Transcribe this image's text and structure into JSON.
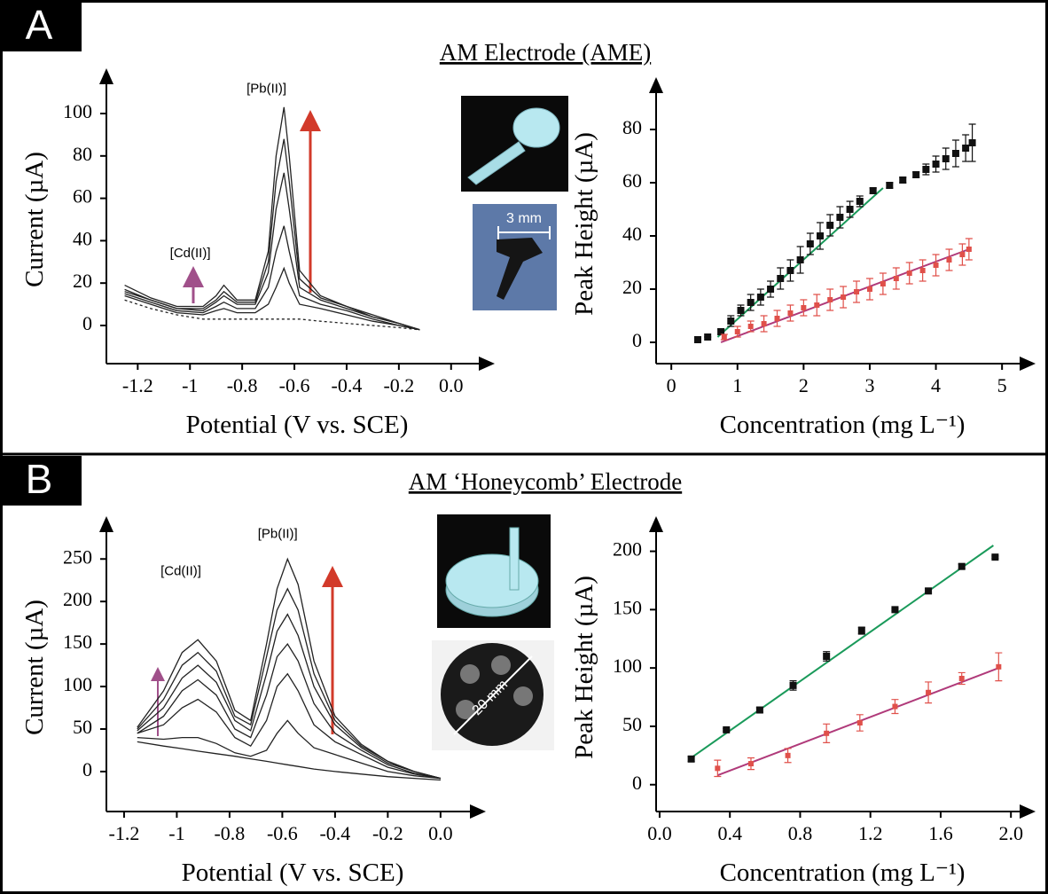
{
  "panels": [
    {
      "label": "A",
      "title": "AM Electrode (AME)",
      "photo_label": "3 mm"
    },
    {
      "label": "B",
      "title": "AM ‘Honeycomb’ Electrode",
      "photo_label": "20 mm"
    }
  ],
  "chart_data": [
    {
      "type": "line",
      "xlabel": "Potential (V vs. SCE)",
      "ylabel": "Current (µA)",
      "annotations": [
        "[Cd(II)]",
        "[Pb(II)]"
      ],
      "xlim": [
        -1.32,
        0.14
      ],
      "ylim": [
        -18,
        118
      ],
      "xticks": [
        -1.2,
        -1.0,
        -0.8,
        -0.6,
        -0.4,
        -0.2,
        {
          "value": 0,
          "label": "0.0"
        }
      ],
      "yticks": [
        0,
        20,
        40,
        60,
        80,
        100
      ],
      "x": [
        -1.25,
        -1.15,
        -1.05,
        -0.95,
        -0.9,
        -0.87,
        -0.82,
        -0.75,
        -0.7,
        -0.67,
        -0.64,
        -0.62,
        -0.58,
        -0.5,
        -0.4,
        -0.3,
        -0.2,
        -0.12
      ],
      "series": [
        {
          "color": "#222222",
          "dashed": true,
          "values": [
            12,
            8,
            5,
            3,
            3,
            3,
            3,
            3,
            3,
            3,
            3,
            3,
            3,
            2,
            1,
            0,
            -1,
            -2
          ]
        },
        {
          "color": "#222222",
          "values": [
            14,
            10,
            6,
            5,
            7,
            8,
            6,
            6,
            10,
            18,
            27,
            20,
            10,
            8,
            5,
            2,
            0,
            -2
          ]
        },
        {
          "color": "#222222",
          "values": [
            15,
            11,
            7,
            6,
            9,
            11,
            8,
            8,
            18,
            35,
            47,
            35,
            14,
            10,
            7,
            3,
            0,
            -2
          ]
        },
        {
          "color": "#222222",
          "values": [
            16,
            12,
            8,
            7,
            11,
            14,
            10,
            10,
            25,
            55,
            72,
            55,
            18,
            12,
            8,
            4,
            1,
            -2
          ]
        },
        {
          "color": "#222222",
          "values": [
            17,
            12,
            8,
            8,
            12,
            16,
            11,
            11,
            30,
            68,
            88,
            68,
            22,
            13,
            9,
            4,
            1,
            -2
          ]
        },
        {
          "color": "#222222",
          "values": [
            19,
            13,
            9,
            9,
            14,
            19,
            12,
            12,
            35,
            80,
            103,
            80,
            26,
            14,
            9,
            5,
            1,
            -2
          ]
        }
      ]
    },
    {
      "type": "scatter",
      "xlabel": "Concentration (mg L⁻¹)",
      "ylabel": "Peak Height (µA)",
      "xlim": [
        -0.23,
        5.4
      ],
      "ylim": [
        -8,
        97
      ],
      "xticks": [
        0,
        1,
        2,
        3,
        4,
        5
      ],
      "yticks": [
        0,
        20,
        40,
        60,
        80
      ],
      "series": [
        {
          "color": "#111111",
          "x": [
            0.4,
            0.55,
            0.75,
            0.9,
            1.05,
            1.2,
            1.35,
            1.5,
            1.65,
            1.8,
            1.95,
            2.1,
            2.25,
            2.4,
            2.55,
            2.7,
            2.85,
            3.05,
            3.3,
            3.5,
            3.7,
            3.85,
            4.0,
            4.15,
            4.3,
            4.45,
            4.55
          ],
          "values": [
            1,
            2,
            4,
            8,
            12,
            15,
            17,
            20,
            24,
            27,
            31,
            37,
            40,
            44,
            47,
            50,
            53,
            57,
            59,
            61,
            63,
            65,
            67,
            69,
            71,
            73,
            75
          ],
          "errors": [
            0,
            0,
            1,
            2,
            2,
            3,
            3,
            3,
            4,
            4,
            5,
            4,
            5,
            4,
            4,
            3,
            2,
            1,
            1,
            1,
            1,
            2,
            3,
            4,
            5,
            5,
            7
          ]
        },
        {
          "color": "#e0504a",
          "x": [
            0.8,
            1.0,
            1.2,
            1.4,
            1.6,
            1.8,
            2.0,
            2.2,
            2.4,
            2.6,
            2.8,
            3.0,
            3.2,
            3.4,
            3.6,
            3.8,
            4.0,
            4.2,
            4.4,
            4.5
          ],
          "values": [
            2,
            4,
            6,
            7,
            9,
            11,
            13,
            14,
            16,
            17,
            19,
            20,
            22,
            24,
            26,
            27,
            29,
            31,
            33,
            35
          ],
          "errors": [
            1,
            2,
            2,
            3,
            3,
            3,
            3,
            4,
            4,
            4,
            4,
            4,
            4,
            4,
            4,
            4,
            4,
            4,
            4,
            4
          ]
        }
      ],
      "fits": [
        {
          "color": "#1a9a5a",
          "x": [
            0.7,
            3.2
          ],
          "values": [
            2,
            58
          ]
        },
        {
          "color": "#b03a7a",
          "x": [
            0.75,
            4.5
          ],
          "values": [
            0,
            35
          ]
        }
      ]
    },
    {
      "type": "line",
      "xlabel": "Potential (V vs. SCE)",
      "ylabel": "Current (µA)",
      "annotations": [
        "[Cd(II)]",
        "[Pb(II)]"
      ],
      "xlim": [
        -1.267,
        0.145
      ],
      "ylim": [
        -47,
        292
      ],
      "xticks": [
        -1.2,
        -1.0,
        -0.8,
        -0.6,
        -0.4,
        -0.2,
        {
          "value": 0,
          "label": "0.0"
        }
      ],
      "yticks": [
        0,
        50,
        100,
        150,
        200,
        250
      ],
      "x": [
        -1.15,
        -1.05,
        -0.98,
        -0.92,
        -0.85,
        -0.78,
        -0.72,
        -0.66,
        -0.62,
        -0.58,
        -0.54,
        -0.48,
        -0.4,
        -0.3,
        -0.2,
        -0.1,
        0
      ],
      "series": [
        {
          "color": "#222222",
          "values": [
            35,
            30,
            27,
            24,
            21,
            18,
            15,
            12,
            10,
            8,
            6,
            3,
            0,
            -3,
            -6,
            -8,
            -10
          ]
        },
        {
          "color": "#222222",
          "values": [
            40,
            38,
            40,
            40,
            33,
            22,
            18,
            25,
            45,
            60,
            45,
            28,
            20,
            10,
            0,
            -5,
            -8
          ]
        },
        {
          "color": "#222222",
          "values": [
            45,
            55,
            75,
            85,
            70,
            40,
            30,
            60,
            100,
            115,
            95,
            55,
            35,
            20,
            5,
            -3,
            -8
          ]
        },
        {
          "color": "#222222",
          "values": [
            45,
            65,
            95,
            108,
            90,
            50,
            40,
            90,
            135,
            150,
            130,
            80,
            45,
            25,
            8,
            -2,
            -8
          ]
        },
        {
          "color": "#222222",
          "values": [
            48,
            75,
            110,
            125,
            105,
            60,
            48,
            115,
            165,
            185,
            160,
            100,
            55,
            28,
            10,
            0,
            -8
          ]
        },
        {
          "color": "#222222",
          "values": [
            50,
            85,
            125,
            140,
            118,
            65,
            55,
            135,
            190,
            215,
            190,
            115,
            60,
            30,
            12,
            0,
            -8
          ]
        },
        {
          "color": "#222222",
          "values": [
            52,
            95,
            140,
            155,
            130,
            72,
            60,
            150,
            215,
            250,
            220,
            130,
            65,
            32,
            12,
            0,
            -8
          ]
        }
      ]
    },
    {
      "type": "scatter",
      "xlabel": "Concentration (mg L⁻¹)",
      "ylabel": "Peak Height (µA)",
      "xlim": [
        -0.02,
        2.1
      ],
      "ylim": [
        -23,
        224
      ],
      "xticks": [
        {
          "value": 0,
          "label": "0.0"
        },
        0.4,
        0.8,
        1.2,
        1.6,
        {
          "value": 2,
          "label": "2.0"
        }
      ],
      "yticks": [
        0,
        50,
        100,
        150,
        200
      ],
      "series": [
        {
          "color": "#111111",
          "x": [
            0.18,
            0.38,
            0.57,
            0.76,
            0.95,
            1.15,
            1.34,
            1.53,
            1.72,
            1.91
          ],
          "values": [
            22,
            47,
            64,
            85,
            110,
            132,
            150,
            166,
            187,
            195
          ],
          "errors": [
            2,
            1,
            2,
            4,
            4,
            3,
            1,
            2,
            2,
            1
          ]
        },
        {
          "color": "#e0504a",
          "x": [
            0.33,
            0.52,
            0.73,
            0.95,
            1.14,
            1.34,
            1.53,
            1.72,
            1.93
          ],
          "values": [
            14,
            18,
            25,
            44,
            53,
            67,
            79,
            91,
            101
          ],
          "errors": [
            7,
            5,
            6,
            8,
            7,
            6,
            9,
            5,
            12
          ]
        }
      ],
      "fits": [
        {
          "color": "#1a9a5a",
          "x": [
            0.17,
            1.9
          ],
          "values": [
            22,
            205
          ]
        },
        {
          "color": "#b03a7a",
          "x": [
            0.33,
            1.93
          ],
          "values": [
            8,
            100
          ]
        }
      ]
    }
  ]
}
